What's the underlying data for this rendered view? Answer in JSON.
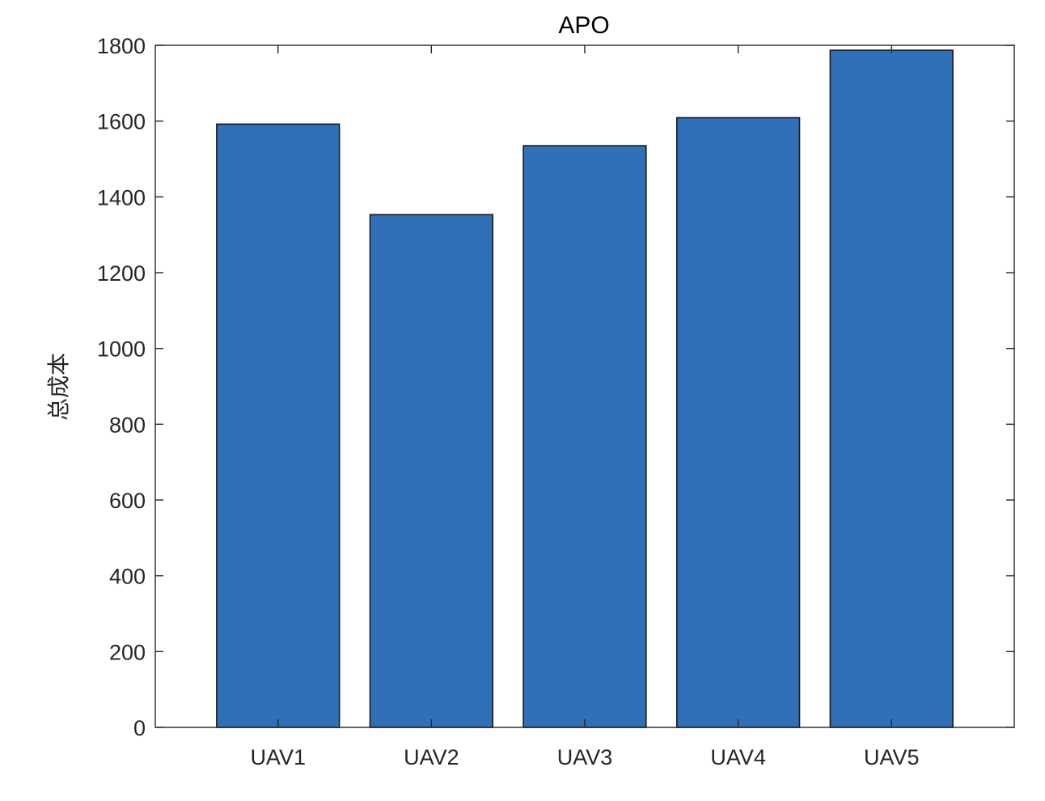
{
  "chart_data": {
    "type": "bar",
    "title": "APO",
    "xlabel": "",
    "ylabel": "总成本",
    "categories": [
      "UAV1",
      "UAV2",
      "UAV3",
      "UAV4",
      "UAV5"
    ],
    "values": [
      1592,
      1353,
      1535,
      1609,
      1787
    ],
    "ylim": [
      0,
      1800
    ],
    "yticks": [
      0,
      200,
      400,
      600,
      800,
      1000,
      1200,
      1400,
      1600,
      1800
    ],
    "ytick_labels": [
      "0",
      "200",
      "400",
      "600",
      "800",
      "1000",
      "1200",
      "1400",
      "1600",
      "1800"
    ],
    "grid": false,
    "legend": "none",
    "colors": {
      "bar_fill": "#3070b8",
      "bar_edge": "#1a1a1a",
      "axis": "#262626",
      "background": "#ffffff"
    }
  }
}
